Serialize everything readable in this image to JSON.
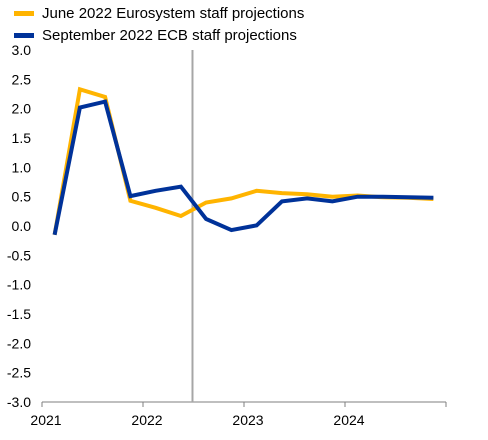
{
  "chart_data": {
    "type": "line",
    "x": [
      "2021-Q1",
      "2021-Q2",
      "2021-Q3",
      "2021-Q4",
      "2022-Q1",
      "2022-Q2",
      "2022-Q3",
      "2022-Q4",
      "2023-Q1",
      "2023-Q2",
      "2023-Q3",
      "2023-Q4",
      "2024-Q1",
      "2024-Q2",
      "2024-Q3",
      "2024-Q4"
    ],
    "series": [
      {
        "name": "June 2022 Eurosystem staff projections",
        "color": "#FFB400",
        "values": [
          -0.15,
          2.33,
          2.2,
          0.43,
          0.31,
          0.17,
          0.4,
          0.47,
          0.6,
          0.56,
          0.54,
          0.5,
          0.52,
          0.49,
          0.48,
          0.46
        ]
      },
      {
        "name": "September 2022 ECB staff projections",
        "color": "#003299",
        "values": [
          -0.15,
          2.02,
          2.12,
          0.51,
          0.6,
          0.67,
          0.12,
          -0.07,
          0.01,
          0.42,
          0.47,
          0.42,
          0.5,
          0.5,
          0.49,
          0.48
        ]
      }
    ],
    "xticks": [
      "2021",
      "2022",
      "2023",
      "2024"
    ],
    "yticks": [
      "3.0",
      "2.5",
      "2.0",
      "1.5",
      "1.0",
      "0.5",
      "0.0",
      "-0.5",
      "-1.0",
      "-1.5",
      "-2.0",
      "-2.5",
      "-3.0"
    ],
    "ylim": [
      -3.0,
      3.0
    ],
    "vertical_marker_x": "2022-Q2",
    "grid": false,
    "legend_position": "top-left",
    "title": "",
    "xlabel": "",
    "ylabel": ""
  }
}
